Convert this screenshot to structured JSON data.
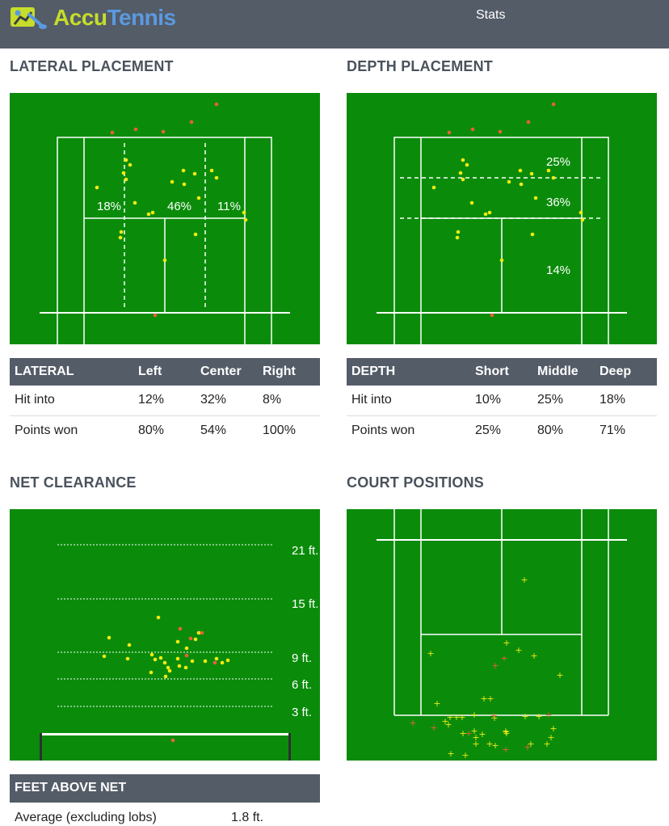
{
  "app": {
    "logo_part1": "Accu",
    "logo_part2": "Tennis",
    "title": "Stats",
    "logo_icon": "tennis-player-icon"
  },
  "colors": {
    "topbar": "#545c68",
    "court": "#0a8c0a",
    "ball_in": "#f2ea12",
    "ball_out": "#e8603a",
    "logo_green": "#c6dd2a",
    "logo_blue": "#5a9ae0"
  },
  "lateral_placement": {
    "title": "LATERAL PLACEMENT",
    "zones": [
      "18%",
      "46%",
      "11%"
    ]
  },
  "depth_placement": {
    "title": "DEPTH PLACEMENT",
    "zones": [
      "25%",
      "36%",
      "14%"
    ]
  },
  "lateral_table": {
    "headers": [
      "LATERAL",
      "Left",
      "Center",
      "Right"
    ],
    "rows": [
      [
        "Hit into",
        "12%",
        "32%",
        "8%"
      ],
      [
        "Points won",
        "80%",
        "54%",
        "100%"
      ]
    ]
  },
  "depth_table": {
    "headers": [
      "DEPTH",
      "Short",
      "Middle",
      "Deep"
    ],
    "rows": [
      [
        "Hit into",
        "10%",
        "25%",
        "18%"
      ],
      [
        "Points won",
        "25%",
        "80%",
        "71%"
      ]
    ]
  },
  "net_clearance": {
    "title": "NET CLEARANCE",
    "levels": [
      "21 ft.",
      "15 ft.",
      "9 ft.",
      "6 ft.",
      "3 ft."
    ]
  },
  "court_positions": {
    "title": "COURT POSITIONS"
  },
  "feet_above_net": {
    "header": "FEET ABOVE NET",
    "label": "Average (excluding lobs)",
    "value": "1.8 ft."
  }
}
